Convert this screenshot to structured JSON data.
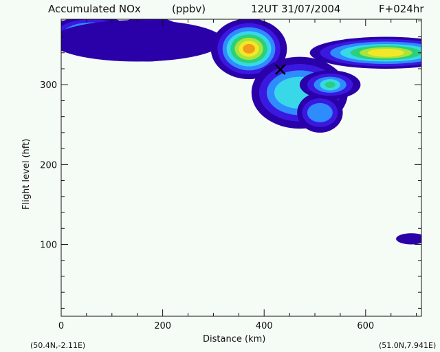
{
  "chart_data": {
    "type": "contour",
    "title": "Accumulated NOx",
    "units": "(ppbv)",
    "time_label": "12UT 31/07/2004",
    "forecast_label": "F+024hr",
    "xlabel": "Distance  (km)",
    "ylabel": "Flight level  (hft)",
    "xlim": [
      0,
      710
    ],
    "ylim": [
      10,
      382
    ],
    "xticks": [
      0,
      200,
      400,
      600
    ],
    "yticks": [
      100,
      200,
      300
    ],
    "start_point": "(50.4N,-2.11E)",
    "end_point": "(51.0N,7.941E)",
    "marker": {
      "symbol": "X",
      "x": 432,
      "y": 319
    },
    "color_levels": [
      "#2a00a8",
      "#3b18e0",
      "#2e8cff",
      "#38d8e8",
      "#2ad07a",
      "#a8e43a",
      "#f2e82a",
      "#f29a1a",
      "#e04a14",
      "#c81010"
    ],
    "regions": [
      {
        "name": "blob-west-1",
        "cx": 60,
        "cy": 362,
        "levels": [
          [
            85,
            24
          ],
          [
            72,
            20
          ],
          [
            58,
            16
          ],
          [
            48,
            13
          ],
          [
            36,
            10
          ],
          [
            22,
            7
          ],
          [
            12,
            4
          ]
        ]
      },
      {
        "name": "blob-west-2",
        "cx": 172,
        "cy": 357,
        "levels": [
          [
            78,
            28
          ],
          [
            64,
            24
          ],
          [
            52,
            20
          ],
          [
            42,
            16
          ],
          [
            32,
            12
          ],
          [
            20,
            8
          ]
        ]
      },
      {
        "name": "band-upper-left",
        "cx": 150,
        "cy": 355,
        "levels": [
          [
            170,
            26
          ]
        ]
      },
      {
        "name": "plume-main",
        "cx": 370,
        "cy": 345,
        "levels": [
          [
            75,
            38
          ],
          [
            62,
            32
          ],
          [
            52,
            27
          ],
          [
            44,
            22
          ],
          [
            36,
            18
          ],
          [
            28,
            14
          ],
          [
            20,
            10
          ],
          [
            12,
            6
          ]
        ]
      },
      {
        "name": "plume-descending",
        "cx": 470,
        "cy": 290,
        "levels": [
          [
            95,
            45
          ],
          [
            80,
            36
          ],
          [
            65,
            28
          ],
          [
            50,
            20
          ]
        ]
      },
      {
        "name": "plume-tail",
        "cx": 510,
        "cy": 265,
        "levels": [
          [
            45,
            25
          ],
          [
            35,
            18
          ],
          [
            25,
            12
          ]
        ]
      },
      {
        "name": "blob-mid-right",
        "cx": 530,
        "cy": 300,
        "levels": [
          [
            60,
            18
          ],
          [
            45,
            14
          ],
          [
            32,
            10
          ],
          [
            20,
            7
          ],
          [
            10,
            4
          ]
        ]
      },
      {
        "name": "blob-east",
        "cx": 640,
        "cy": 340,
        "levels": [
          [
            150,
            20
          ],
          [
            130,
            17
          ],
          [
            110,
            14
          ],
          [
            90,
            11
          ],
          [
            70,
            9
          ],
          [
            52,
            7
          ],
          [
            36,
            5
          ]
        ]
      },
      {
        "name": "blob-low-east",
        "cx": 690,
        "cy": 107,
        "levels": [
          [
            30,
            7
          ]
        ]
      }
    ]
  }
}
